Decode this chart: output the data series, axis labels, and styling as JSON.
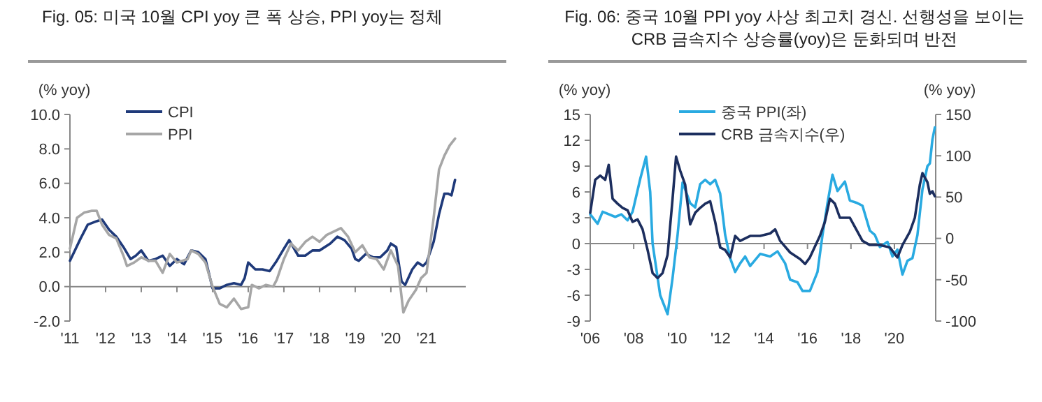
{
  "chart_data": [
    {
      "type": "line",
      "title": "Fig. 05:  미국 10월 CPI yoy 큰 폭 상승, PPI yoy는 정체",
      "ylabel": "(% yoy)",
      "legend": "top left",
      "xlim": [
        2011,
        2022.1
      ],
      "xticks": [
        {
          "value": 2011,
          "label": "'11"
        },
        {
          "value": 2012,
          "label": "'12"
        },
        {
          "value": 2013,
          "label": "'13"
        },
        {
          "value": 2014,
          "label": "'14"
        },
        {
          "value": 2015,
          "label": "'15"
        },
        {
          "value": 2016,
          "label": "'16"
        },
        {
          "value": 2017,
          "label": "'17"
        },
        {
          "value": 2018,
          "label": "'18"
        },
        {
          "value": 2019,
          "label": "'19"
        },
        {
          "value": 2020,
          "label": "'20"
        },
        {
          "value": 2021,
          "label": "'21"
        }
      ],
      "ylim": [
        -2,
        10
      ],
      "yticks": [
        {
          "value": -2,
          "label": "-2.0"
        },
        {
          "value": 0,
          "label": "0.0"
        },
        {
          "value": 2,
          "label": "2.0"
        },
        {
          "value": 4,
          "label": "4.0"
        },
        {
          "value": 6,
          "label": "6.0"
        },
        {
          "value": 8,
          "label": "8.0"
        },
        {
          "value": 10,
          "label": "10.0"
        }
      ],
      "series": [
        {
          "name": "CPI",
          "color": "#1f3a7a",
          "x": [
            2011.0,
            2011.3,
            2011.5,
            2011.75,
            2011.9,
            2012.1,
            2012.3,
            2012.5,
            2012.7,
            2012.85,
            2013.0,
            2013.2,
            2013.4,
            2013.6,
            2013.8,
            2014.0,
            2014.2,
            2014.4,
            2014.6,
            2014.8,
            2015.0,
            2015.2,
            2015.4,
            2015.6,
            2015.8,
            2015.9,
            2016.0,
            2016.2,
            2016.4,
            2016.6,
            2016.8,
            2017.0,
            2017.15,
            2017.4,
            2017.6,
            2017.8,
            2018.0,
            2018.3,
            2018.5,
            2018.7,
            2018.9,
            2019.0,
            2019.1,
            2019.3,
            2019.5,
            2019.7,
            2019.9,
            2020.0,
            2020.15,
            2020.3,
            2020.4,
            2020.6,
            2020.75,
            2020.9,
            2021.0,
            2021.2,
            2021.35,
            2021.5,
            2021.6,
            2021.7,
            2021.8
          ],
          "values": [
            1.5,
            2.8,
            3.6,
            3.8,
            3.9,
            3.3,
            2.9,
            2.3,
            1.6,
            1.8,
            2.1,
            1.5,
            1.6,
            1.8,
            1.2,
            1.6,
            1.3,
            2.1,
            2.0,
            1.6,
            -0.1,
            -0.1,
            0.1,
            0.2,
            0.1,
            0.5,
            1.4,
            1.0,
            1.0,
            0.9,
            1.5,
            2.2,
            2.7,
            1.8,
            1.8,
            2.1,
            2.1,
            2.5,
            2.9,
            2.7,
            2.2,
            1.6,
            1.5,
            1.9,
            1.7,
            1.7,
            2.1,
            2.5,
            2.3,
            0.3,
            0.1,
            1.0,
            1.4,
            1.2,
            1.4,
            2.6,
            4.2,
            5.4,
            5.4,
            5.3,
            6.2
          ]
        },
        {
          "name": "PPI",
          "color": "#a6a6a6",
          "x": [
            2011.0,
            2011.2,
            2011.4,
            2011.6,
            2011.75,
            2011.9,
            2012.1,
            2012.3,
            2012.5,
            2012.6,
            2012.8,
            2013.0,
            2013.2,
            2013.4,
            2013.6,
            2013.8,
            2014.0,
            2014.3,
            2014.4,
            2014.6,
            2014.8,
            2015.0,
            2015.2,
            2015.4,
            2015.6,
            2015.8,
            2016.0,
            2016.1,
            2016.3,
            2016.5,
            2016.7,
            2016.8,
            2017.0,
            2017.2,
            2017.4,
            2017.6,
            2017.8,
            2018.0,
            2018.2,
            2018.6,
            2018.8,
            2019.0,
            2019.2,
            2019.4,
            2019.6,
            2019.8,
            2020.0,
            2020.2,
            2020.35,
            2020.5,
            2020.7,
            2020.85,
            2021.0,
            2021.2,
            2021.35,
            2021.5,
            2021.65,
            2021.8
          ],
          "values": [
            2.2,
            4.0,
            4.3,
            4.4,
            4.4,
            3.6,
            3.0,
            2.8,
            1.8,
            1.2,
            1.4,
            1.7,
            1.5,
            1.5,
            0.8,
            1.9,
            1.4,
            1.6,
            2.1,
            1.9,
            1.4,
            0.0,
            -1.0,
            -1.2,
            -0.7,
            -1.3,
            -1.2,
            0.1,
            -0.1,
            0.1,
            0.0,
            0.4,
            1.6,
            2.5,
            2.1,
            2.6,
            2.9,
            2.6,
            3.0,
            3.4,
            2.9,
            2.0,
            2.4,
            1.7,
            1.6,
            1.0,
            2.1,
            1.2,
            -1.5,
            -0.8,
            -0.2,
            0.5,
            0.8,
            4.0,
            6.8,
            7.6,
            8.2,
            8.6
          ]
        }
      ]
    },
    {
      "type": "line",
      "title": "Fig. 06:  중국 10월 PPI yoy 사상 최고치 경신. 선행성을 보이는 CRB 금속지수 상승률(yoy)은 둔화되며 반전",
      "ylabel": "(% yoy)",
      "y2label": "(% yoy)",
      "legend": "top",
      "xlim": [
        2006,
        2021.9
      ],
      "xticks": [
        {
          "value": 2006,
          "label": "'06"
        },
        {
          "value": 2008,
          "label": "'08"
        },
        {
          "value": 2010,
          "label": "'10"
        },
        {
          "value": 2012,
          "label": "'12"
        },
        {
          "value": 2014,
          "label": "'14"
        },
        {
          "value": 2016,
          "label": "'16"
        },
        {
          "value": 2018,
          "label": "'18"
        },
        {
          "value": 2020,
          "label": "'20"
        }
      ],
      "ylim": [
        -9,
        15
      ],
      "yticks": [
        -9,
        -6,
        -3,
        0,
        3,
        6,
        9,
        12,
        15
      ],
      "y2lim": [
        -100,
        150
      ],
      "y2ticks": [
        -100,
        -50,
        0,
        50,
        100,
        150
      ],
      "series": [
        {
          "name": "중국 PPI(좌)",
          "color": "#29aae1",
          "x": [
            2006.0,
            2006.34,
            2006.57,
            2007.15,
            2007.43,
            2007.72,
            2007.95,
            2008.3,
            2008.57,
            2008.76,
            2008.87,
            2009.22,
            2009.56,
            2009.79,
            2010.02,
            2010.25,
            2010.6,
            2010.83,
            2011.06,
            2011.29,
            2011.52,
            2011.75,
            2011.98,
            2012.21,
            2012.44,
            2012.67,
            2012.9,
            2013.13,
            2013.36,
            2013.82,
            2014.28,
            2014.62,
            2014.97,
            2015.2,
            2015.54,
            2015.77,
            2016.11,
            2016.46,
            2016.69,
            2016.92,
            2017.15,
            2017.38,
            2017.72,
            2017.95,
            2018.3,
            2018.53,
            2018.87,
            2019.1,
            2019.33,
            2019.68,
            2019.91,
            2020.14,
            2020.37,
            2020.6,
            2020.83,
            2021.06,
            2021.29,
            2021.52,
            2021.63,
            2021.75,
            2021.86
          ],
          "values": [
            3.4,
            2.3,
            3.7,
            3.1,
            3.4,
            2.7,
            3.7,
            7.5,
            10.1,
            6.0,
            0.0,
            -6.0,
            -8.2,
            -4.0,
            1.0,
            7.1,
            4.7,
            4.2,
            6.9,
            7.4,
            6.9,
            7.4,
            5.8,
            1.0,
            -1.7,
            -3.3,
            -2.3,
            -1.5,
            -2.6,
            -1.2,
            -1.5,
            -0.9,
            -2.3,
            -4.2,
            -4.5,
            -5.5,
            -5.5,
            -3.3,
            1.0,
            4.7,
            8.0,
            6.1,
            7.2,
            5.0,
            4.7,
            4.4,
            1.5,
            1.0,
            -0.4,
            0.2,
            -1.5,
            -0.7,
            -3.6,
            -2.0,
            -1.7,
            1.0,
            6.3,
            9.0,
            9.3,
            12.1,
            13.5
          ]
        },
        {
          "name": "CRB 금속지수(우)",
          "color": "#1c2e5e",
          "axis": "y2",
          "x": [
            2006.0,
            2006.23,
            2006.46,
            2006.69,
            2006.85,
            2007.03,
            2007.26,
            2007.49,
            2007.72,
            2007.95,
            2008.18,
            2008.41,
            2008.64,
            2008.87,
            2009.1,
            2009.33,
            2009.56,
            2009.79,
            2009.95,
            2010.14,
            2010.37,
            2010.6,
            2010.83,
            2011.06,
            2011.29,
            2011.52,
            2011.75,
            2011.98,
            2012.21,
            2012.44,
            2012.67,
            2012.9,
            2013.36,
            2013.82,
            2014.28,
            2014.51,
            2014.74,
            2015.2,
            2015.66,
            2015.89,
            2016.11,
            2016.57,
            2016.8,
            2017.03,
            2017.26,
            2017.49,
            2017.95,
            2018.18,
            2018.53,
            2018.87,
            2019.33,
            2019.79,
            2020.14,
            2020.37,
            2020.71,
            2020.94,
            2021.17,
            2021.29,
            2021.52,
            2021.63,
            2021.75,
            2021.86
          ],
          "values": [
            31,
            71,
            76,
            71,
            89,
            48,
            42,
            37,
            34,
            20,
            23,
            11,
            -14,
            -42,
            -48,
            -42,
            -20,
            48,
            99,
            82,
            65,
            17,
            31,
            37,
            42,
            45,
            20,
            -11,
            -14,
            -23,
            3,
            -3,
            3,
            3,
            6,
            11,
            -3,
            -17,
            -25,
            -31,
            -23,
            3,
            20,
            48,
            42,
            25,
            25,
            14,
            -3,
            -8,
            -8,
            -11,
            -23,
            -8,
            8,
            25,
            65,
            79,
            68,
            54,
            57,
            51
          ]
        }
      ]
    }
  ]
}
